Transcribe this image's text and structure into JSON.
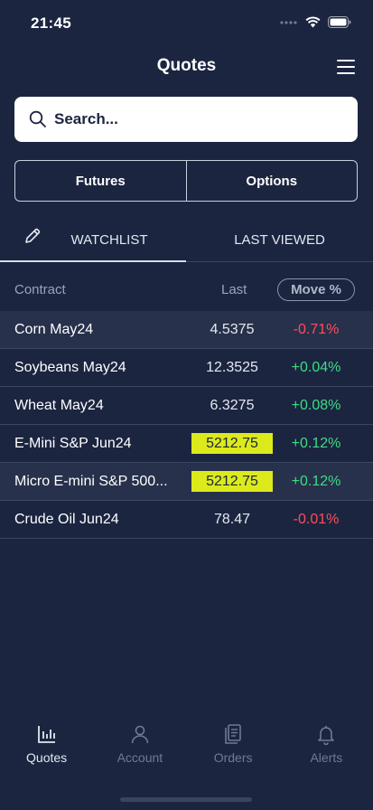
{
  "status_bar": {
    "time": "21:45"
  },
  "header": {
    "title": "Quotes"
  },
  "search": {
    "placeholder": "Search..."
  },
  "segments": [
    {
      "label": "Futures"
    },
    {
      "label": "Options"
    }
  ],
  "tabs": [
    {
      "label": "WATCHLIST",
      "active": true
    },
    {
      "label": "LAST VIEWED",
      "active": false
    }
  ],
  "columns": {
    "contract": "Contract",
    "last": "Last",
    "move": "Move %"
  },
  "rows": [
    {
      "name": "Corn May24",
      "last": "4.5375",
      "move": "-0.71%",
      "direction": "down",
      "highlight": false
    },
    {
      "name": "Soybeans May24",
      "last": "12.3525",
      "move": "+0.04%",
      "direction": "up",
      "highlight": false
    },
    {
      "name": "Wheat May24",
      "last": "6.3275",
      "move": "+0.08%",
      "direction": "up",
      "highlight": false
    },
    {
      "name": "E-Mini S&P Jun24",
      "last": "5212.75",
      "move": "+0.12%",
      "direction": "up",
      "highlight": true
    },
    {
      "name": "Micro E-mini S&P 500...",
      "last": "5212.75",
      "move": "+0.12%",
      "direction": "up",
      "highlight": true
    },
    {
      "name": "Crude Oil Jun24",
      "last": "78.47",
      "move": "-0.01%",
      "direction": "down",
      "highlight": false
    }
  ],
  "bottom_nav": [
    {
      "label": "Quotes",
      "icon": "bar-chart-icon",
      "active": true
    },
    {
      "label": "Account",
      "icon": "person-icon",
      "active": false
    },
    {
      "label": "Orders",
      "icon": "document-icon",
      "active": false
    },
    {
      "label": "Alerts",
      "icon": "bell-icon",
      "active": false
    }
  ],
  "colors": {
    "background": "#1b2540",
    "row_shaded": "#27314b",
    "positive": "#3ddc84",
    "negative": "#ff4d5a",
    "highlight": "#dcea1c"
  }
}
